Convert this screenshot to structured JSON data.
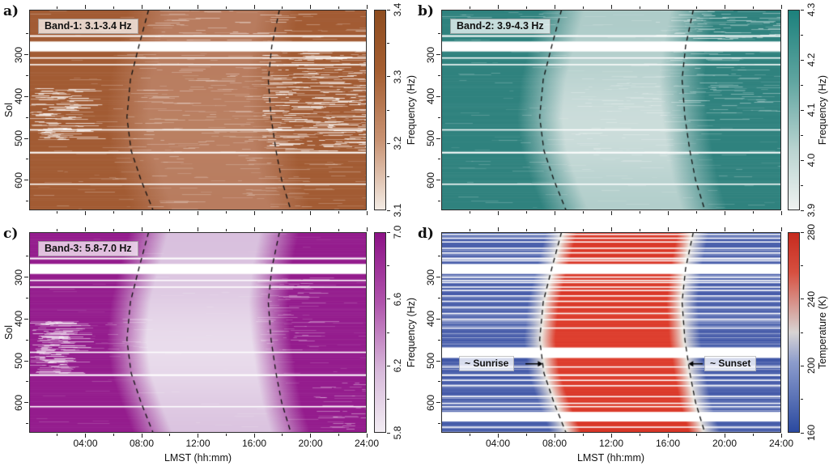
{
  "chart_data": {
    "type": "heatmap",
    "description": "Four-panel Mars sol vs local-time heatmaps: resonance frequency of three bands and surface temperature, with dashed sunrise/sunset terminator curves.",
    "x_axis": {
      "title": "LMST (hh:mm)",
      "range_hours": [
        0,
        24
      ],
      "major_tick_hours": [
        4,
        8,
        12,
        16,
        20,
        24
      ],
      "major_tick_labels": [
        "04:00",
        "08:00",
        "12:00",
        "16:00",
        "20:00",
        "24:00"
      ],
      "minor_tick_hours": [
        2,
        6,
        10,
        14,
        18,
        22
      ]
    },
    "y_axis": {
      "title": "Sol",
      "range": [
        192,
        672
      ],
      "major_ticks": [
        300,
        400,
        500,
        600
      ],
      "minor_ticks": [
        250,
        350,
        450,
        550,
        650
      ]
    },
    "annotations": {
      "sunrise": "~ Sunrise",
      "sunset": "~ Sunset"
    },
    "terminator_curves": {
      "sunrise_points_sol_hour": [
        [
          192,
          8.5
        ],
        [
          280,
          7.8
        ],
        [
          360,
          7.2
        ],
        [
          450,
          6.95
        ],
        [
          530,
          7.25
        ],
        [
          600,
          7.95
        ],
        [
          672,
          8.8
        ]
      ],
      "sunset_points_sol_hour": [
        [
          192,
          17.8
        ],
        [
          280,
          17.25
        ],
        [
          360,
          17.0
        ],
        [
          450,
          17.2
        ],
        [
          530,
          17.55
        ],
        [
          600,
          17.95
        ],
        [
          672,
          18.6
        ]
      ]
    },
    "data_gaps_sol": {
      "common": [
        [
          253,
          257
        ],
        [
          268,
          292
        ],
        [
          306,
          309
        ],
        [
          322,
          325
        ],
        [
          478,
          481
        ],
        [
          532,
          536
        ],
        [
          608,
          611
        ]
      ],
      "panel_d_extra": [
        [
          196,
          199
        ],
        [
          205,
          208
        ],
        [
          214,
          217
        ],
        [
          229,
          232
        ],
        [
          240,
          243
        ],
        [
          259,
          262
        ],
        [
          298,
          301
        ],
        [
          311,
          314
        ],
        [
          330,
          333
        ],
        [
          343,
          346
        ],
        [
          356,
          359
        ],
        [
          370,
          373
        ],
        [
          385,
          388
        ],
        [
          400,
          403
        ],
        [
          420,
          423
        ],
        [
          468,
          493
        ],
        [
          513,
          516
        ],
        [
          545,
          548
        ],
        [
          558,
          561
        ],
        [
          584,
          587
        ],
        [
          600,
          603
        ],
        [
          622,
          645
        ],
        [
          657,
          660
        ]
      ]
    },
    "panels": [
      {
        "id": "a",
        "letter": "a)",
        "band_label": "Band-1: 3.1-3.4 Hz",
        "quantity": "Frequency (Hz)",
        "unit": "Hz",
        "colorbar": {
          "range": [
            3.1,
            3.4
          ],
          "major_ticks": [
            "3.1",
            "3.2",
            "3.3",
            "3.4"
          ],
          "minor_ticks": [
            3.15,
            3.25,
            3.35
          ]
        },
        "night_value": 3.37,
        "day_value": 3.3,
        "colors": {
          "night": "#A25B33",
          "day": "#B87C5F",
          "peak": "#C28A6C",
          "cmap": [
            [
              0,
              "#F4EDE6"
            ],
            [
              0.35,
              "#C99373"
            ],
            [
              0.7,
              "#A55E31"
            ],
            [
              1,
              "#8E4D20"
            ]
          ]
        },
        "peak_bump": 0.3,
        "transition_h": 1.5,
        "seed": 11,
        "streak_regions": [
          {
            "t": [
              16.5,
              24
            ],
            "sol": [
              275,
              530
            ],
            "density": 0.95,
            "alpha": 0.8,
            "n": 4
          },
          {
            "t": [
              8,
              24
            ],
            "sol": [
              192,
              265
            ],
            "density": 0.8,
            "alpha": 0.5,
            "n": 3
          },
          {
            "t": [
              0,
              3.5
            ],
            "sol": [
              380,
              505
            ],
            "density": 0.9,
            "alpha": 0.8,
            "n": 3
          },
          {
            "t": [
              7,
              17
            ],
            "sol": [
              300,
              560
            ],
            "density": 0.7,
            "alpha": 0.35,
            "n": 2
          },
          {
            "t": [
              0,
              24
            ],
            "sol": [
              192,
              672
            ],
            "density": 0.5,
            "alpha": 0.25,
            "n": 2
          },
          {
            "t": [
              8,
              22
            ],
            "sol": [
              560,
              672
            ],
            "density": 0.6,
            "alpha": 0.3,
            "n": 2
          }
        ]
      },
      {
        "id": "b",
        "letter": "b)",
        "band_label": "Band-2: 3.9-4.3 Hz",
        "quantity": "Frequency (Hz)",
        "unit": "Hz",
        "colorbar": {
          "range": [
            3.9,
            4.3
          ],
          "major_ticks": [
            "3.9",
            "4.0",
            "4.1",
            "4.2",
            "4.3"
          ],
          "minor_ticks": [
            3.95,
            4.05,
            4.15,
            4.25
          ]
        },
        "night_value": 4.25,
        "day_value": 3.97,
        "colors": {
          "night": "#2F827E",
          "day": "#AECCC9",
          "peak": "#D6E3E1",
          "cmap": [
            [
              0,
              "#F0F3F2"
            ],
            [
              0.3,
              "#BAD4D1"
            ],
            [
              0.65,
              "#5FA5A0"
            ],
            [
              1,
              "#1C817C"
            ]
          ]
        },
        "peak_bump": 0.75,
        "transition_h": 1.6,
        "seed": 22,
        "streak_regions": [
          {
            "t": [
              15,
              24
            ],
            "sol": [
              192,
              265
            ],
            "density": 0.9,
            "alpha": 0.55,
            "n": 3
          },
          {
            "t": [
              16,
              23
            ],
            "sol": [
              290,
              460
            ],
            "density": 0.6,
            "alpha": 0.4,
            "n": 2
          },
          {
            "t": [
              0,
              8
            ],
            "sol": [
              192,
              240
            ],
            "density": 0.5,
            "alpha": 0.35,
            "n": 2
          },
          {
            "t": [
              9,
              16
            ],
            "sol": [
              350,
              560
            ],
            "density": 0.5,
            "alpha": 0.3,
            "n": 2
          },
          {
            "t": [
              0,
              24
            ],
            "sol": [
              192,
              672
            ],
            "density": 0.45,
            "alpha": 0.22,
            "n": 2
          }
        ]
      },
      {
        "id": "c",
        "letter": "c)",
        "band_label": "Band-3: 5.8-7.0 Hz",
        "quantity": "Frequency (Hz)",
        "unit": "Hz",
        "colorbar": {
          "range": [
            5.8,
            7.0
          ],
          "major_ticks": [
            "5.8",
            "6.2",
            "6.6",
            "7.0"
          ],
          "minor_ticks": [
            6.0,
            6.4,
            6.8
          ]
        },
        "night_value": 6.85,
        "day_value": 5.95,
        "colors": {
          "night": "#941C8D",
          "day": "#D9C0DE",
          "peak": "#EFE6F1",
          "cmap": [
            [
              0,
              "#F3EEF4"
            ],
            [
              0.3,
              "#D9BCDC"
            ],
            [
              0.65,
              "#B054AC"
            ],
            [
              1,
              "#8C1186"
            ]
          ]
        },
        "peak_bump": 0.75,
        "transition_h": 1.4,
        "seed": 33,
        "streak_regions": [
          {
            "t": [
              0,
              2.5
            ],
            "sol": [
              405,
              530
            ],
            "density": 0.9,
            "alpha": 0.7,
            "n": 3
          },
          {
            "t": [
              3,
              8
            ],
            "sol": [
              400,
              480
            ],
            "density": 0.4,
            "alpha": 0.3,
            "n": 1
          },
          {
            "t": [
              20,
              24
            ],
            "sol": [
              550,
              668
            ],
            "density": 0.5,
            "alpha": 0.4,
            "n": 2
          },
          {
            "t": [
              16,
              20
            ],
            "sol": [
              300,
              480
            ],
            "density": 0.5,
            "alpha": 0.35,
            "n": 2
          },
          {
            "t": [
              0,
              24
            ],
            "sol": [
              192,
              672
            ],
            "density": 0.3,
            "alpha": 0.18,
            "n": 1
          }
        ]
      },
      {
        "id": "d",
        "letter": "d)",
        "band_label": null,
        "quantity": "Temperature (K)",
        "unit": "K",
        "colorbar": {
          "range": [
            160,
            280
          ],
          "major_ticks": [
            "160",
            "200",
            "240",
            "280"
          ],
          "minor_ticks": [
            180,
            220,
            260
          ]
        },
        "night_value": 190,
        "day_value": 268,
        "colors": {
          "night": "#3D54A6",
          "day": "#D63426",
          "peak": "#E04534",
          "mid": "#EBE7E0",
          "cmap": [
            [
              0,
              "#2A49A0"
            ],
            [
              0.35,
              "#8C9CCC"
            ],
            [
              0.5,
              "#D8D4D4"
            ],
            [
              0.8,
              "#D75040"
            ],
            [
              1,
              "#C62A1E"
            ]
          ]
        },
        "peak_bump": 0.5,
        "transition_h": 1.1,
        "seed": 44,
        "streak_regions": []
      }
    ],
    "layout": {
      "plots": {
        "a": [
          36,
          12,
          417,
          248
        ],
        "b": [
          545,
          12,
          420,
          248
        ],
        "c": [
          36,
          287,
          417,
          248
        ],
        "d": [
          545,
          287,
          420,
          248
        ]
      },
      "colorbars": {
        "a": [
          462,
          12,
          15,
          248
        ],
        "b": [
          973,
          12,
          15,
          248
        ],
        "c": [
          462,
          287,
          15,
          248
        ],
        "d": [
          973,
          287,
          15,
          248
        ]
      }
    }
  }
}
